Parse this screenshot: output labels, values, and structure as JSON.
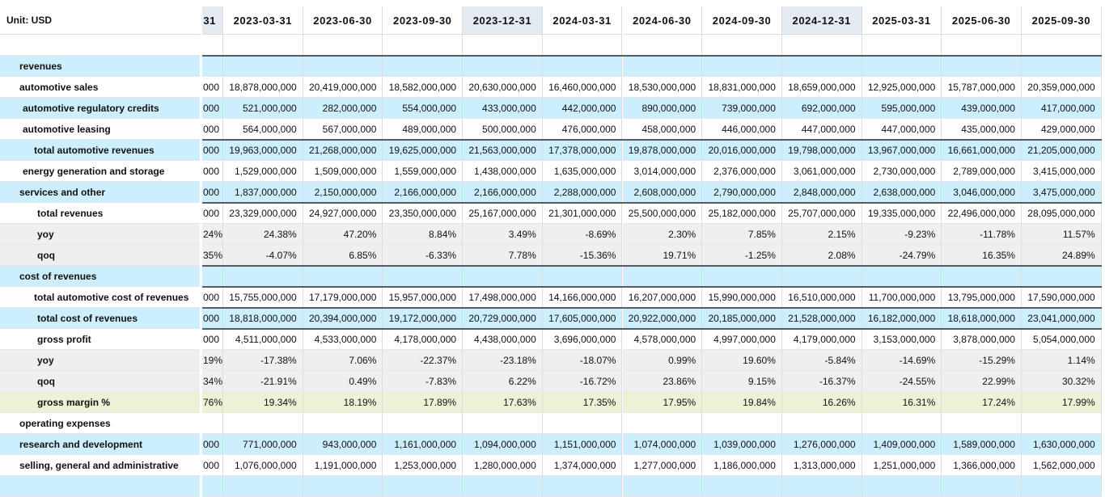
{
  "header": {
    "unit_label": "Unit: USD",
    "columns": [
      "31",
      "2023-03-31",
      "2023-06-30",
      "2023-09-30",
      "2023-12-31",
      "2024-03-31",
      "2024-06-30",
      "2024-09-30",
      "2024-12-31",
      "2025-03-31",
      "2025-06-30",
      "2025-09-30"
    ],
    "highlighted_columns": [
      0,
      4,
      8
    ]
  },
  "colors": {
    "row_blue": "#cdeefc",
    "row_gray": "#efefef",
    "row_yellow": "#eff1d6",
    "header_highlight": "#e4eaf2",
    "section_rule": "#555b60"
  },
  "rows": [
    {
      "label": "revenues",
      "indent": 1,
      "style": "blue",
      "rule_top": true,
      "values": []
    },
    {
      "label": "automotive sales",
      "indent": 1,
      "style": "white",
      "values": [
        "000",
        "18,878,000,000",
        "20,419,000,000",
        "18,582,000,000",
        "20,630,000,000",
        "16,460,000,000",
        "18,530,000,000",
        "18,831,000,000",
        "18,659,000,000",
        "12,925,000,000",
        "15,787,000,000",
        "20,359,000,000"
      ]
    },
    {
      "label": "automotive regulatory credits",
      "indent": 2,
      "style": "blue",
      "values": [
        "000",
        "521,000,000",
        "282,000,000",
        "554,000,000",
        "433,000,000",
        "442,000,000",
        "890,000,000",
        "739,000,000",
        "692,000,000",
        "595,000,000",
        "439,000,000",
        "417,000,000"
      ]
    },
    {
      "label": "automotive leasing",
      "indent": 2,
      "style": "white",
      "values": [
        "000",
        "564,000,000",
        "567,000,000",
        "489,000,000",
        "500,000,000",
        "476,000,000",
        "458,000,000",
        "446,000,000",
        "447,000,000",
        "447,000,000",
        "435,000,000",
        "429,000,000"
      ]
    },
    {
      "label": "total automotive revenues",
      "indent": 3,
      "style": "blue",
      "rule_top": true,
      "values": [
        "000",
        "19,963,000,000",
        "21,268,000,000",
        "19,625,000,000",
        "21,563,000,000",
        "17,378,000,000",
        "19,878,000,000",
        "20,016,000,000",
        "19,798,000,000",
        "13,967,000,000",
        "16,661,000,000",
        "21,205,000,000"
      ]
    },
    {
      "label": "energy generation and storage",
      "indent": 2,
      "style": "white",
      "values": [
        "000",
        "1,529,000,000",
        "1,509,000,000",
        "1,559,000,000",
        "1,438,000,000",
        "1,635,000,000",
        "3,014,000,000",
        "2,376,000,000",
        "3,061,000,000",
        "2,730,000,000",
        "2,789,000,000",
        "3,415,000,000"
      ]
    },
    {
      "label": "services and other",
      "indent": 1,
      "style": "blue",
      "values": [
        "000",
        "1,837,000,000",
        "2,150,000,000",
        "2,166,000,000",
        "2,166,000,000",
        "2,288,000,000",
        "2,608,000,000",
        "2,790,000,000",
        "2,848,000,000",
        "2,638,000,000",
        "3,046,000,000",
        "3,475,000,000"
      ]
    },
    {
      "label": "total revenues",
      "indent": 4,
      "style": "white",
      "rule_top": true,
      "values": [
        "000",
        "23,329,000,000",
        "24,927,000,000",
        "23,350,000,000",
        "25,167,000,000",
        "21,301,000,000",
        "25,500,000,000",
        "25,182,000,000",
        "25,707,000,000",
        "19,335,000,000",
        "22,496,000,000",
        "28,095,000,000"
      ]
    },
    {
      "label": "yoy",
      "indent": 4,
      "style": "gray",
      "values": [
        "24%",
        "24.38%",
        "47.20%",
        "8.84%",
        "3.49%",
        "-8.69%",
        "2.30%",
        "7.85%",
        "2.15%",
        "-9.23%",
        "-11.78%",
        "11.57%"
      ]
    },
    {
      "label": "qoq",
      "indent": 4,
      "style": "gray",
      "values": [
        "35%",
        "-4.07%",
        "6.85%",
        "-6.33%",
        "7.78%",
        "-15.36%",
        "19.71%",
        "-1.25%",
        "2.08%",
        "-24.79%",
        "16.35%",
        "24.89%"
      ]
    },
    {
      "label": "cost of revenues",
      "indent": 1,
      "style": "blue",
      "rule_top": true,
      "values": []
    },
    {
      "label": "total automotive cost of revenues",
      "indent": 3,
      "style": "white",
      "rule_top": true,
      "values": [
        "000",
        "15,755,000,000",
        "17,179,000,000",
        "15,957,000,000",
        "17,498,000,000",
        "14,166,000,000",
        "16,207,000,000",
        "15,990,000,000",
        "16,510,000,000",
        "11,700,000,000",
        "13,795,000,000",
        "17,590,000,000"
      ]
    },
    {
      "label": "total cost of revenues",
      "indent": 4,
      "style": "blue",
      "rule_top": true,
      "values": [
        "000",
        "18,818,000,000",
        "20,394,000,000",
        "19,172,000,000",
        "20,729,000,000",
        "17,605,000,000",
        "20,922,000,000",
        "20,185,000,000",
        "21,528,000,000",
        "16,182,000,000",
        "18,618,000,000",
        "23,041,000,000"
      ]
    },
    {
      "label": "gross profit",
      "indent": 4,
      "style": "white",
      "rule_top": true,
      "values": [
        "000",
        "4,511,000,000",
        "4,533,000,000",
        "4,178,000,000",
        "4,438,000,000",
        "3,696,000,000",
        "4,578,000,000",
        "4,997,000,000",
        "4,179,000,000",
        "3,153,000,000",
        "3,878,000,000",
        "5,054,000,000"
      ]
    },
    {
      "label": "yoy",
      "indent": 4,
      "style": "gray",
      "values": [
        "19%",
        "-17.38%",
        "7.06%",
        "-22.37%",
        "-23.18%",
        "-18.07%",
        "0.99%",
        "19.60%",
        "-5.84%",
        "-14.69%",
        "-15.29%",
        "1.14%"
      ]
    },
    {
      "label": "qoq",
      "indent": 4,
      "style": "gray",
      "values": [
        "34%",
        "-21.91%",
        "0.49%",
        "-7.83%",
        "6.22%",
        "-16.72%",
        "23.86%",
        "9.15%",
        "-16.37%",
        "-24.55%",
        "22.99%",
        "30.32%"
      ]
    },
    {
      "label": "gross margin %",
      "indent": 4,
      "style": "yellow",
      "values": [
        "76%",
        "19.34%",
        "18.19%",
        "17.89%",
        "17.63%",
        "17.35%",
        "17.95%",
        "19.84%",
        "16.26%",
        "16.31%",
        "17.24%",
        "17.99%"
      ]
    },
    {
      "label": "operating expenses",
      "indent": 1,
      "style": "white",
      "values": []
    },
    {
      "label": "research and development",
      "indent": 1,
      "style": "blue",
      "values": [
        "000",
        "771,000,000",
        "943,000,000",
        "1,161,000,000",
        "1,094,000,000",
        "1,151,000,000",
        "1,074,000,000",
        "1,039,000,000",
        "1,276,000,000",
        "1,409,000,000",
        "1,589,000,000",
        "1,630,000,000"
      ]
    },
    {
      "label": "selling, general and administrative",
      "indent": 1,
      "style": "white",
      "values": [
        "000",
        "1,076,000,000",
        "1,191,000,000",
        "1,253,000,000",
        "1,280,000,000",
        "1,374,000,000",
        "1,277,000,000",
        "1,186,000,000",
        "1,313,000,000",
        "1,251,000,000",
        "1,366,000,000",
        "1,562,000,000"
      ]
    },
    {
      "label": "",
      "indent": 1,
      "style": "blue",
      "values": []
    }
  ]
}
